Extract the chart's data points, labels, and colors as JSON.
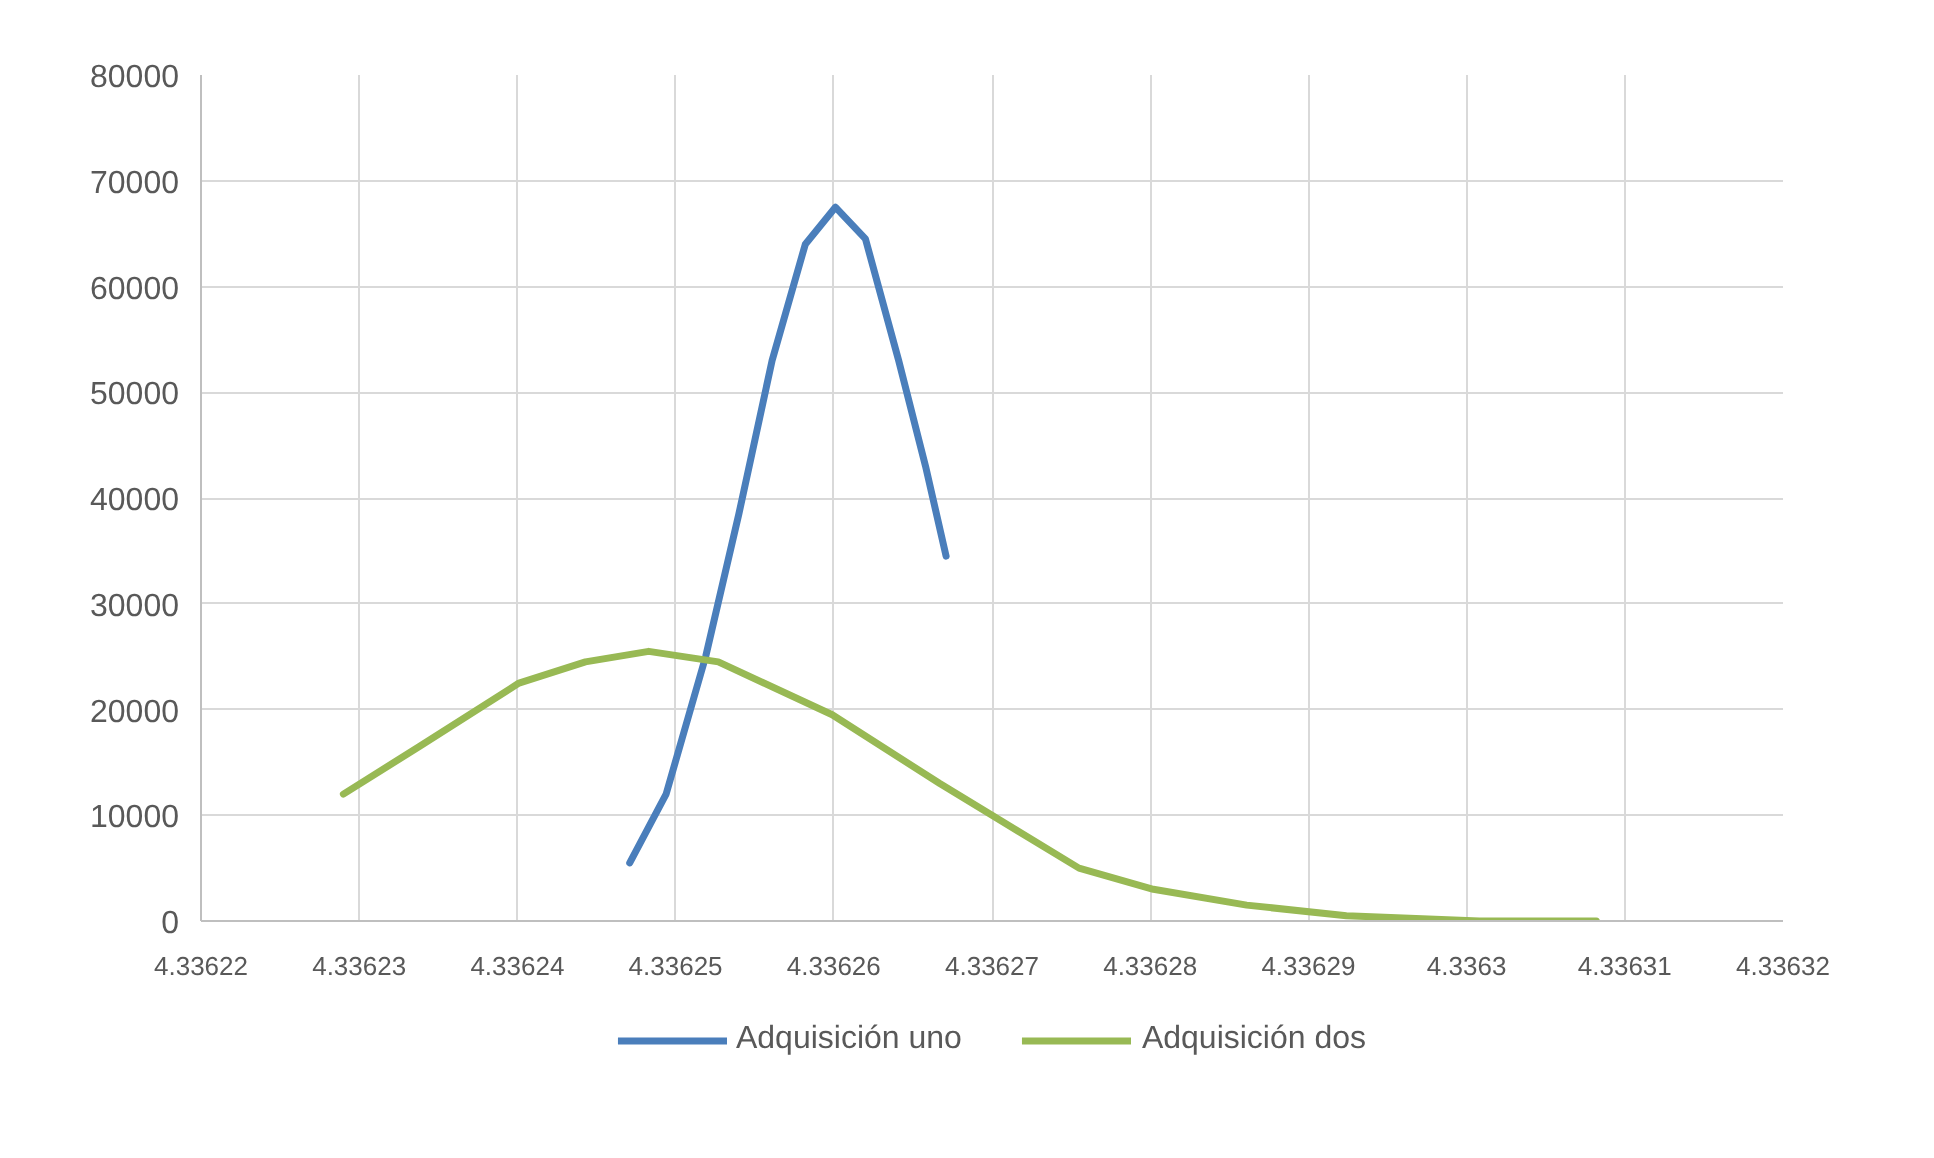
{
  "chart_data": {
    "type": "line",
    "xlim": [
      4.33622,
      4.33632
    ],
    "xticks": [
      {
        "value": 4.33622,
        "label": "4.33622"
      },
      {
        "value": 4.33623,
        "label": "4.33623"
      },
      {
        "value": 4.33624,
        "label": "4.33624"
      },
      {
        "value": 4.33625,
        "label": "4.33625"
      },
      {
        "value": 4.33626,
        "label": "4.33626"
      },
      {
        "value": 4.33627,
        "label": "4.33627"
      },
      {
        "value": 4.33628,
        "label": "4.33628"
      },
      {
        "value": 4.33629,
        "label": "4.33629"
      },
      {
        "value": 4.3363,
        "label": "4.3363"
      },
      {
        "value": 4.33631,
        "label": "4.33631"
      },
      {
        "value": 4.33632,
        "label": "4.33632"
      }
    ],
    "ylim": [
      0,
      80000
    ],
    "yticks": [
      0,
      10000,
      20000,
      30000,
      40000,
      50000,
      60000,
      70000,
      80000
    ],
    "grid": true,
    "legend": "bottom",
    "marker": "none",
    "line_style": "solid",
    "series": [
      {
        "name": "Adquisición uno",
        "color": "#4a7ebb",
        "x": [
          4.3362471,
          4.3362494,
          4.3362519,
          4.336254,
          4.3362561,
          4.3362582,
          4.3362601,
          4.336262,
          4.3362641,
          4.3362658,
          4.3362671
        ],
        "values": [
          5500,
          12000,
          25000,
          38500,
          53000,
          64000,
          67500,
          64500,
          53000,
          43000,
          34500
        ]
      },
      {
        "name": "Adquisición dos",
        "color": "#98b954",
        "x": [
          4.336229,
          4.3362338,
          4.3362401,
          4.3362443,
          4.3362483,
          4.3362527,
          4.3362599,
          4.3362667,
          4.33627,
          4.3362755,
          4.3362802,
          4.3362861,
          4.3362924,
          4.3363008,
          4.3363082
        ],
        "values": [
          12000,
          16500,
          22500,
          24500,
          25500,
          24500,
          19500,
          13000,
          10000,
          5000,
          3000,
          1500,
          500,
          0,
          0
        ]
      }
    ]
  }
}
